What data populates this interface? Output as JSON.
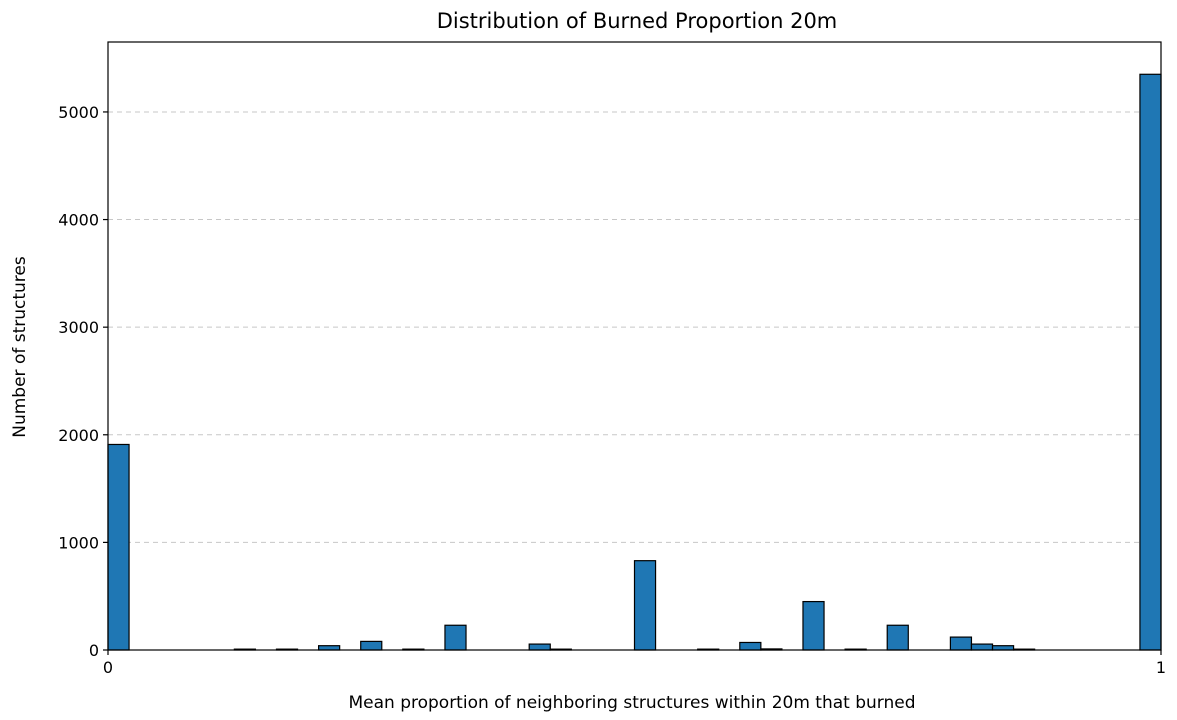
{
  "chart_data": {
    "type": "bar",
    "title": "Distribution of Burned Proportion 20m",
    "xlabel": "Mean proportion of neighboring structures within 20m that burned",
    "ylabel": "Number of structures",
    "xlim": [
      0,
      1
    ],
    "ylim": [
      0,
      5650
    ],
    "bin_width": 0.02,
    "xticks": [
      0,
      1
    ],
    "xtick_labels": [
      "0",
      "1"
    ],
    "yticks": [
      0,
      1000,
      2000,
      3000,
      4000,
      5000
    ],
    "ytick_labels": [
      "0",
      "1000",
      "2000",
      "3000",
      "4000",
      "5000"
    ],
    "grid": "y-dashed",
    "x": [
      0.0,
      0.12,
      0.16,
      0.2,
      0.24,
      0.28,
      0.32,
      0.4,
      0.42,
      0.5,
      0.56,
      0.6,
      0.62,
      0.66,
      0.7,
      0.74,
      0.8,
      0.82,
      0.84,
      0.86,
      0.98
    ],
    "values": [
      1910,
      8,
      8,
      40,
      80,
      8,
      230,
      55,
      8,
      830,
      8,
      70,
      10,
      450,
      8,
      230,
      120,
      55,
      40,
      8,
      5350
    ]
  }
}
